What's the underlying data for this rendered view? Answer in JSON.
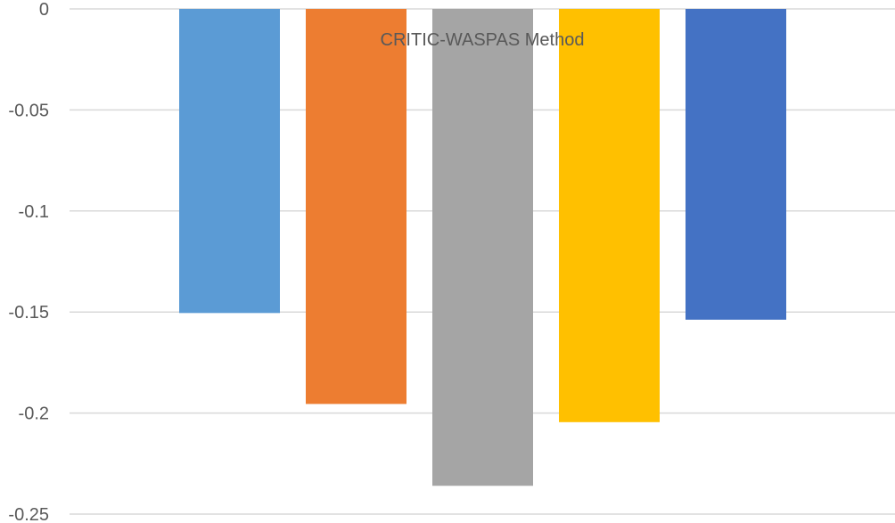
{
  "chart_data": {
    "type": "bar",
    "title": "CRITIC-WASPAS Method",
    "xlabel": "",
    "ylabel": "",
    "ylim": [
      -0.25,
      0
    ],
    "yticks": [
      0,
      -0.05,
      -0.1,
      -0.15,
      -0.2,
      -0.25
    ],
    "ytick_labels": [
      "0",
      "-0.05",
      "-0.1",
      "-0.15",
      "-0.2",
      "-0.25"
    ],
    "grid": true,
    "values": [
      -0.1505,
      -0.1955,
      -0.236,
      -0.2045,
      -0.1538
    ],
    "colors": [
      "#5b9bd5",
      "#ed7d31",
      "#a5a5a5",
      "#ffc000",
      "#4472c4"
    ]
  }
}
